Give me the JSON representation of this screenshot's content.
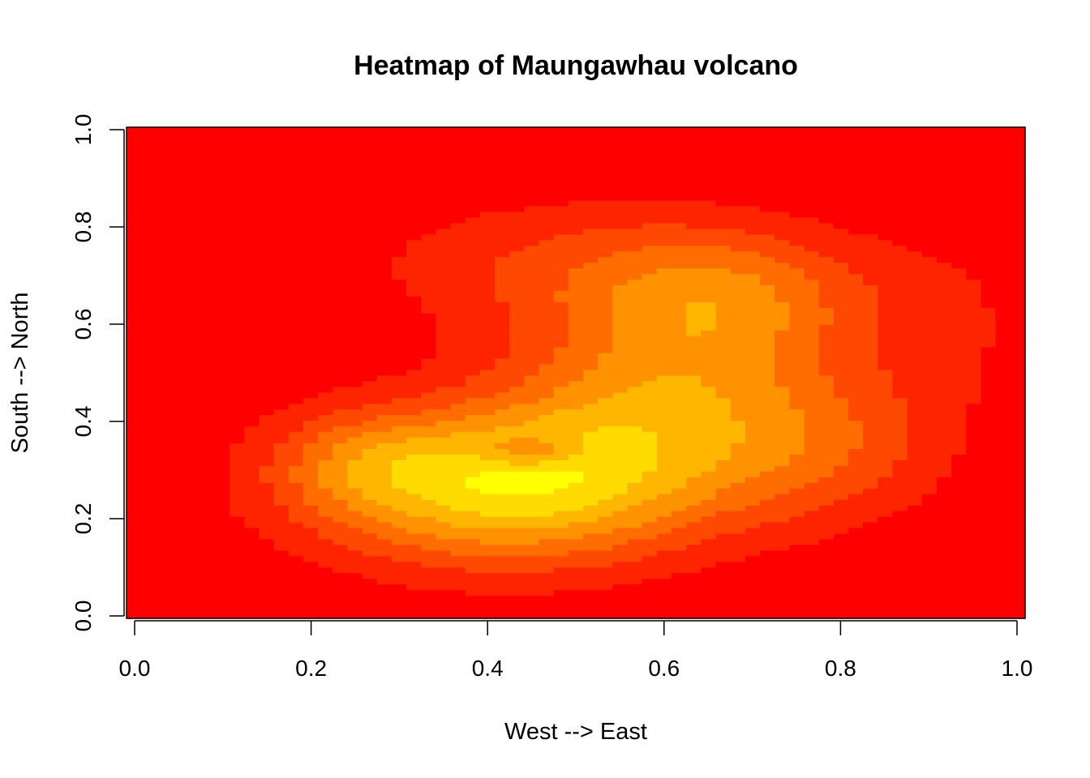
{
  "chart_data": {
    "type": "heatmap",
    "title": "Heatmap of Maungawhau volcano",
    "xlabel": "West --> East",
    "ylabel": "South --> North",
    "xlim": [
      0,
      1
    ],
    "ylim": [
      0,
      1
    ],
    "x_ticks": [
      "0.0",
      "0.2",
      "0.4",
      "0.6",
      "0.8",
      "1.0"
    ],
    "y_ticks": [
      "0.0",
      "0.2",
      "0.4",
      "0.6",
      "0.8",
      "1.0"
    ],
    "grid": false,
    "legend": "none",
    "palette": [
      "#ff0000",
      "#ff2400",
      "#ff4900",
      "#ff6d00",
      "#ff9200",
      "#ffb600",
      "#ffdb00",
      "#ffff00",
      "#ffff40",
      "#ffffbf"
    ],
    "grid_size": {
      "columns": 61,
      "rows": 87
    },
    "levels_min": 0,
    "levels_max": 9,
    "values_note_hidden": ""
  }
}
